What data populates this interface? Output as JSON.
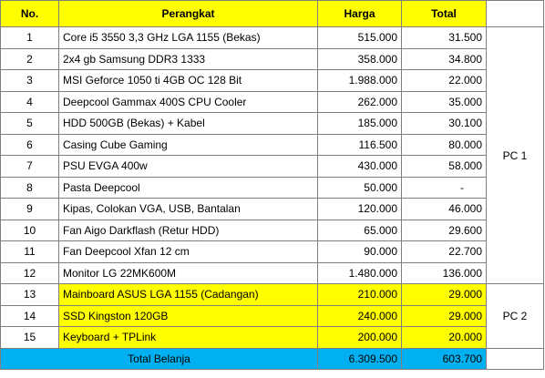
{
  "headers": {
    "no": "No.",
    "perangkat": "Perangkat",
    "harga": "Harga",
    "total": "Total"
  },
  "rows": [
    {
      "no": "1",
      "perangkat": "Core i5 3550 3,3 GHz LGA 1155 (Bekas)",
      "harga": "515.000",
      "total": "31.500"
    },
    {
      "no": "2",
      "perangkat": "2x4 gb Samsung DDR3 1333",
      "harga": "358.000",
      "total": "34.800"
    },
    {
      "no": "3",
      "perangkat": "MSI Geforce 1050 ti 4GB OC 128 Bit",
      "harga": "1.988.000",
      "total": "22.000"
    },
    {
      "no": "4",
      "perangkat": "Deepcool Gammax 400S CPU Cooler",
      "harga": "262.000",
      "total": "35.000"
    },
    {
      "no": "5",
      "perangkat": "HDD 500GB (Bekas) + Kabel",
      "harga": "185.000",
      "total": "30.100"
    },
    {
      "no": "6",
      "perangkat": "Casing Cube Gaming",
      "harga": "116.500",
      "total": "80.000"
    },
    {
      "no": "7",
      "perangkat": "PSU EVGA 400w",
      "harga": "430.000",
      "total": "58.000"
    },
    {
      "no": "8",
      "perangkat": "Pasta Deepcool",
      "harga": "50.000",
      "total": "-"
    },
    {
      "no": "9",
      "perangkat": "Kipas, Colokan VGA, USB, Bantalan",
      "harga": "120.000",
      "total": "46.000"
    },
    {
      "no": "10",
      "perangkat": "Fan Aigo Darkflash (Retur HDD)",
      "harga": "65.000",
      "total": "29.600"
    },
    {
      "no": "11",
      "perangkat": "Fan Deepcool Xfan 12 cm",
      "harga": "90.000",
      "total": "22.700"
    },
    {
      "no": "12",
      "perangkat": "Monitor LG 22MK600M",
      "harga": "1.480.000",
      "total": "136.000"
    },
    {
      "no": "13",
      "perangkat": "Mainboard ASUS LGA 1155 (Cadangan)",
      "harga": "210.000",
      "total": "29.000"
    },
    {
      "no": "14",
      "perangkat": "SSD Kingston 120GB",
      "harga": "240.000",
      "total": "29.000"
    },
    {
      "no": "15",
      "perangkat": "Keyboard + TPLink",
      "harga": "200.000",
      "total": "20.000"
    }
  ],
  "groups": {
    "pc1": "PC 1",
    "pc2": "PC 2"
  },
  "footer": {
    "label": "Total Belanja",
    "harga": "6.309.500",
    "total": "603.700"
  },
  "colors": {
    "header_fill": "#ffff00",
    "highlight_fill": "#ffff00",
    "total_fill": "#00b0f0",
    "grid": "#7f7f7f"
  }
}
